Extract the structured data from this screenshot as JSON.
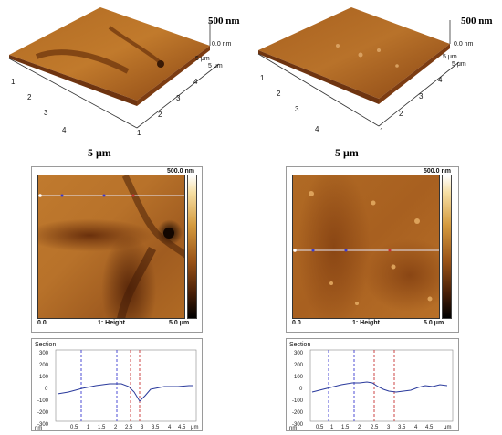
{
  "left": {
    "top3d": {
      "z_max": "500 nm",
      "z_zero": "0.0 nm",
      "axis_right_far": "5 μm",
      "axis_right_near": "5 μm",
      "xy_size": "5 μm",
      "left_ticks": [
        "1",
        "2",
        "3",
        "4"
      ],
      "right_ticks": [
        "1",
        "2",
        "3",
        "4"
      ]
    },
    "image2d": {
      "scale_max": "500.0 nm",
      "x_start": "0.0",
      "channel": "1: Height",
      "x_end": "5.0 μm"
    },
    "section": {
      "title": "Section",
      "y_ticks": [
        "300",
        "200",
        "100",
        "0",
        "-100",
        "-200",
        "-300"
      ],
      "x_ticks": [
        "0.5",
        "1",
        "1.5",
        "2",
        "2.5",
        "3",
        "3.5",
        "4",
        "4.5"
      ],
      "x_unit": "μm",
      "y_unit": "nm"
    }
  },
  "right": {
    "top3d": {
      "z_max": "500 nm",
      "z_zero": "0.0 nm",
      "axis_right_far": "5 μm",
      "axis_right_near": "5 μm",
      "xy_size": "5 μm",
      "left_ticks": [
        "1",
        "2",
        "3",
        "4"
      ],
      "right_ticks": [
        "1",
        "2",
        "3",
        "4"
      ]
    },
    "image2d": {
      "scale_max": "500.0 nm",
      "x_start": "0.0",
      "channel": "1: Height",
      "x_end": "5.0 μm"
    },
    "section": {
      "title": "Section",
      "y_ticks": [
        "300",
        "200",
        "100",
        "0",
        "-100",
        "-200",
        "-300"
      ],
      "x_ticks": [
        "0.5",
        "1",
        "1.5",
        "2",
        "2.5",
        "3",
        "3.5",
        "4",
        "4.5"
      ],
      "x_unit": "μm",
      "y_unit": "nm"
    }
  },
  "colors": {
    "surface_light": "#c8802e",
    "surface_dark": "#5a2a0a",
    "profile_line": "#2a3a9c",
    "cursor_blue": "#3b3bd0",
    "cursor_red": "#c83232"
  }
}
